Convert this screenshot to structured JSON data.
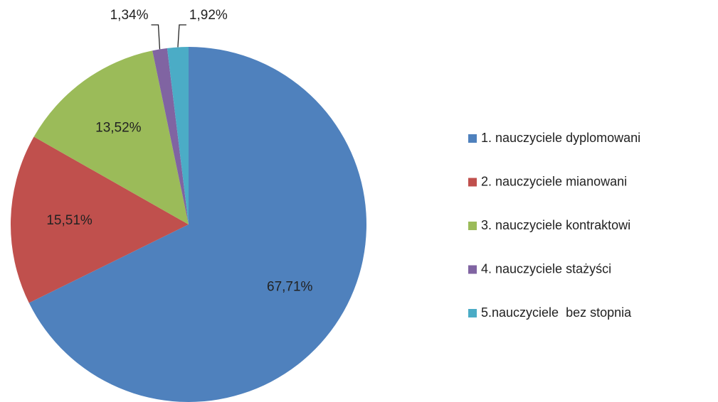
{
  "chart_data": {
    "type": "pie",
    "categories": [
      "1. nauczyciele dyplomowani",
      "2. nauczyciele mianowani",
      "3. nauczyciele kontraktowi",
      "4. nauczyciele stażyści",
      "5.nauczyciele  bez stopnia"
    ],
    "values": [
      67.71,
      15.51,
      13.52,
      1.34,
      1.92
    ],
    "value_labels": [
      "67,71%",
      "15,51%",
      "13,52%",
      "1,34%",
      "1,92%"
    ],
    "colors": [
      "#4f81bd",
      "#c0504d",
      "#9bbb59",
      "#8064a2",
      "#4bacc6"
    ],
    "legend": "right"
  }
}
